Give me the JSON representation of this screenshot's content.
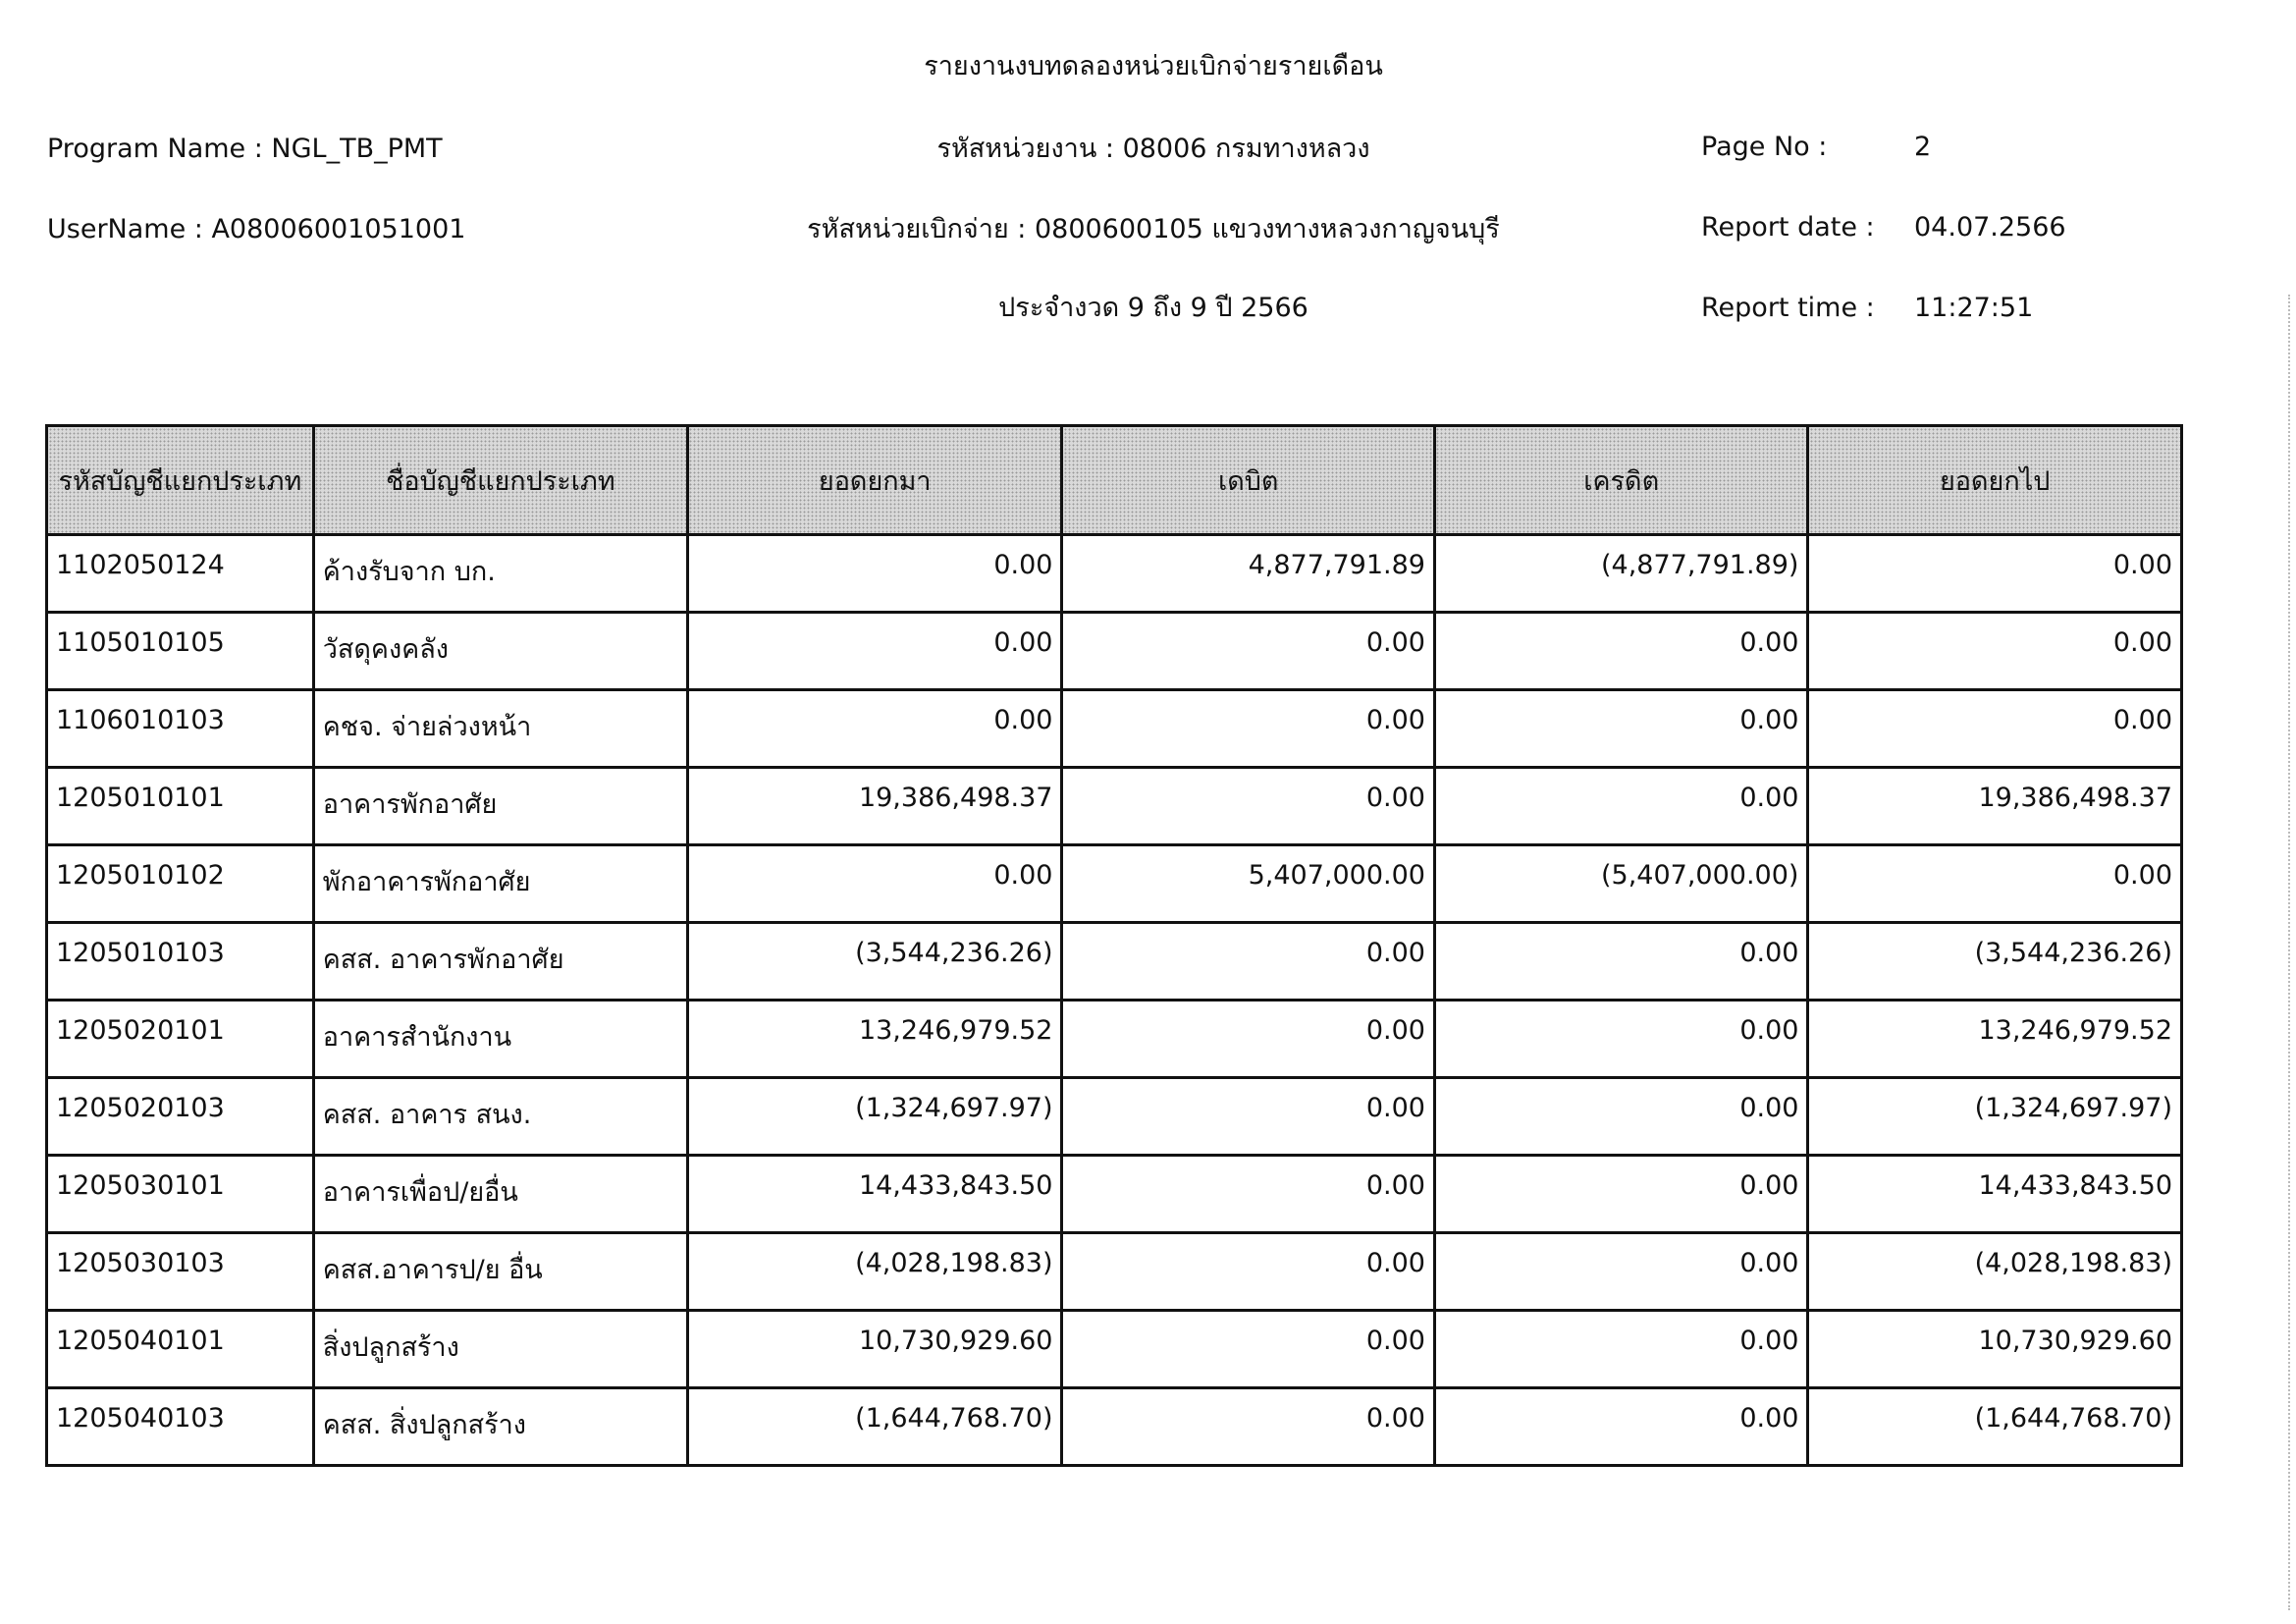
{
  "report": {
    "title": "รายงานงบทดลองหน่วยเบิกจ่ายรายเดือน",
    "program_name": "Program Name : NGL_TB_PMT",
    "username": "UserName : A08006001051001",
    "agency": "รหัสหน่วยงาน : 08006 กรมทางหลวง",
    "disbursing_unit": "รหัสหน่วยเบิกจ่าย : 0800600105 แขวงทางหลวงกาญจนบุรี",
    "period": "ประจำงวด 9 ถึง 9 ปี 2566",
    "page_no_label": "Page No :",
    "page_no": "2",
    "report_date_label": "Report date :",
    "report_date": "04.07.2566",
    "report_time_label": "Report time :",
    "report_time": "11:27:51"
  },
  "table": {
    "headers": [
      "รหัสบัญชีแยกประเภท",
      "ชื่อบัญชีแยกประเภท",
      "ยอดยกมา",
      "เดบิต",
      "เครดิต",
      "ยอดยกไป"
    ],
    "rows": [
      [
        "1102050124",
        "ค้างรับจาก บก.",
        "0.00",
        "4,877,791.89",
        "(4,877,791.89)",
        "0.00"
      ],
      [
        "1105010105",
        "วัสดุคงคลัง",
        "0.00",
        "0.00",
        "0.00",
        "0.00"
      ],
      [
        "1106010103",
        "คชจ. จ่ายล่วงหน้า",
        "0.00",
        "0.00",
        "0.00",
        "0.00"
      ],
      [
        "1205010101",
        "อาคารพักอาศัย",
        "19,386,498.37",
        "0.00",
        "0.00",
        "19,386,498.37"
      ],
      [
        "1205010102",
        "พักอาคารพักอาศัย",
        "0.00",
        "5,407,000.00",
        "(5,407,000.00)",
        "0.00"
      ],
      [
        "1205010103",
        "คสส. อาคารพักอาศัย",
        "(3,544,236.26)",
        "0.00",
        "0.00",
        "(3,544,236.26)"
      ],
      [
        "1205020101",
        "อาคารสำนักงาน",
        "13,246,979.52",
        "0.00",
        "0.00",
        "13,246,979.52"
      ],
      [
        "1205020103",
        "คสส. อาคาร สนง.",
        "(1,324,697.97)",
        "0.00",
        "0.00",
        "(1,324,697.97)"
      ],
      [
        "1205030101",
        "อาคารเพื่อป/ยอื่น",
        "14,433,843.50",
        "0.00",
        "0.00",
        "14,433,843.50"
      ],
      [
        "1205030103",
        "คสส.อาคารป/ย อื่น",
        "(4,028,198.83)",
        "0.00",
        "0.00",
        "(4,028,198.83)"
      ],
      [
        "1205040101",
        "สิ่งปลูกสร้าง",
        "10,730,929.60",
        "0.00",
        "0.00",
        "10,730,929.60"
      ],
      [
        "1205040103",
        "คสส. สิ่งปลูกสร้าง",
        "(1,644,768.70)",
        "0.00",
        "0.00",
        "(1,644,768.70)"
      ]
    ]
  }
}
